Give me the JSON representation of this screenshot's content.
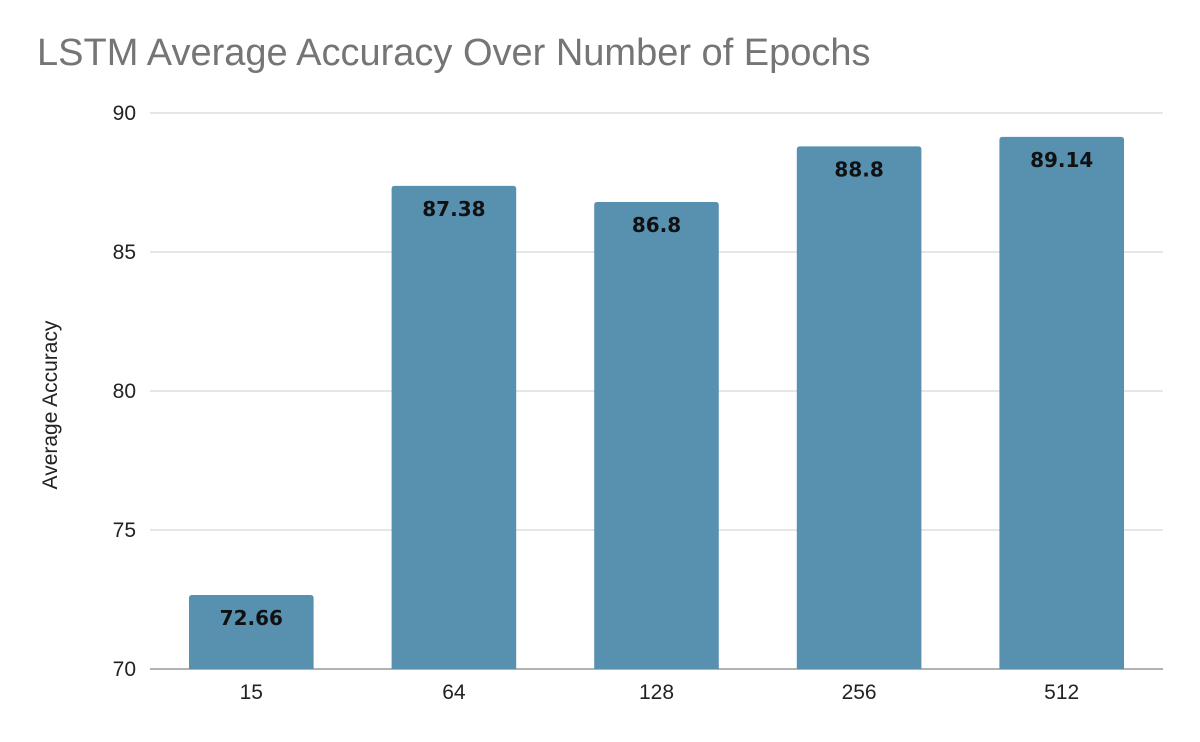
{
  "chart_data": {
    "type": "bar",
    "title": "LSTM Average Accuracy Over Number of Epochs",
    "xlabel": "",
    "ylabel": "Average Accuracy",
    "categories": [
      "15",
      "64",
      "128",
      "256",
      "512"
    ],
    "values": [
      72.66,
      87.38,
      86.8,
      88.8,
      89.14
    ],
    "data_labels": [
      "72.66",
      "87.38",
      "86.8",
      "88.8",
      "89.14"
    ],
    "ylim": [
      70,
      90
    ],
    "yticks": [
      70,
      75,
      80,
      85,
      90
    ],
    "grid": true,
    "legend": "none",
    "colors": {
      "bar": "#5890B0",
      "grid": "#CCCCCC",
      "axis": "#999999",
      "title": "#757575"
    }
  }
}
